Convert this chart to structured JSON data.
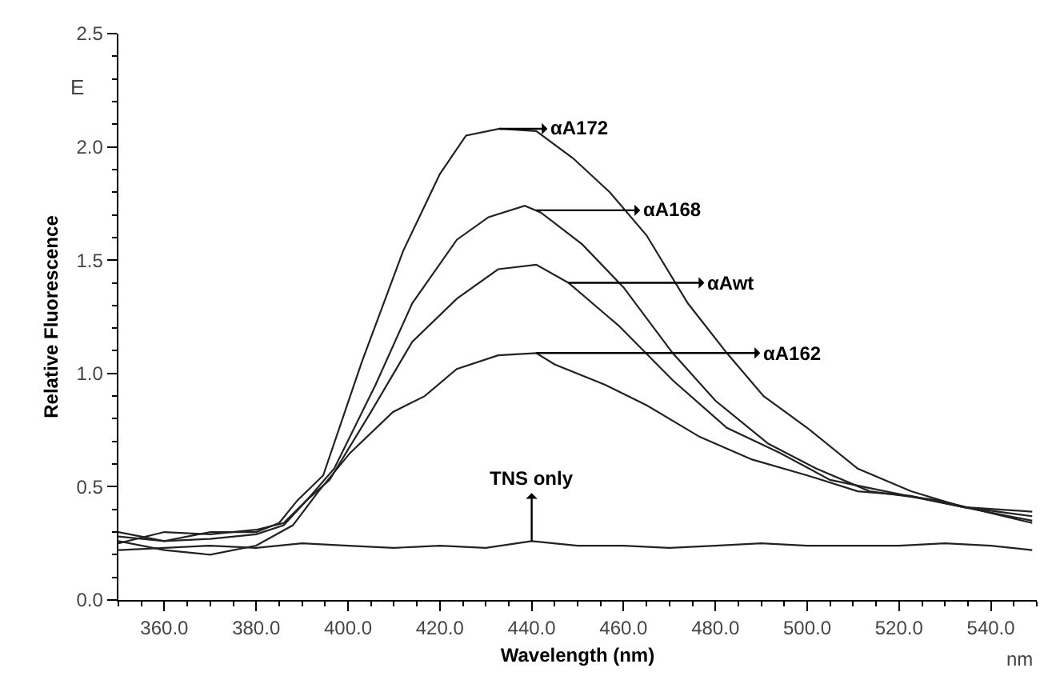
{
  "chart_data": {
    "type": "line",
    "xlabel": "Wavelength (nm)",
    "ylabel": "Relative Fluorescence",
    "xlim": [
      350,
      550
    ],
    "ylim": [
      0,
      2.5
    ],
    "xticks": [
      {
        "value": 360,
        "label": "360.0"
      },
      {
        "value": 380,
        "label": "380.0"
      },
      {
        "value": 400,
        "label": "400.0"
      },
      {
        "value": 420,
        "label": "420.0"
      },
      {
        "value": 440,
        "label": "440.0"
      },
      {
        "value": 460,
        "label": "460.0"
      },
      {
        "value": 480,
        "label": "480.0"
      },
      {
        "value": 500,
        "label": "500.0"
      },
      {
        "value": 520,
        "label": "520.0"
      },
      {
        "value": 540,
        "label": "540.0"
      }
    ],
    "yticks": [
      {
        "value": 0,
        "label": "0.0"
      },
      {
        "value": 0.5,
        "label": "0.5"
      },
      {
        "value": 1,
        "label": "1.0"
      },
      {
        "value": 1.5,
        "label": "1.5"
      },
      {
        "value": 2,
        "label": "2.0"
      },
      {
        "value": 2.5,
        "label": "2.5"
      }
    ],
    "grid": false,
    "marker": "none",
    "line_style": "solid",
    "annotations": [
      {
        "text": "αA172",
        "x": 433,
        "y": 2.08
      },
      {
        "text": "αA168",
        "x": 441,
        "y": 1.72
      },
      {
        "text": "αAwt",
        "x": 448,
        "y": 1.4
      },
      {
        "text": "αA162",
        "x": 441,
        "y": 1.09
      },
      {
        "text": "TNS only",
        "x": 440,
        "y": 0.26
      },
      "E",
      "nm"
    ],
    "series": [
      {
        "color": "#222222",
        "x": [
          350,
          360,
          370,
          380,
          385,
          389,
          394.6,
          403,
          412,
          420,
          425.7,
          433,
          441,
          449,
          457,
          465,
          474,
          482.5,
          490.5,
          500,
          511,
          522.6,
          534,
          549
        ],
        "values": [
          0.28,
          0.26,
          0.3,
          0.3,
          0.34,
          0.44,
          0.55,
          1.05,
          1.54,
          1.88,
          2.05,
          2.08,
          2.07,
          1.95,
          1.8,
          1.61,
          1.31,
          1.09,
          0.9,
          0.76,
          0.58,
          0.48,
          0.41,
          0.37
        ]
      },
      {
        "color": "#222222",
        "x": [
          350,
          360,
          370,
          380,
          386,
          391,
          397,
          406,
          414,
          423.7,
          430.6,
          438.5,
          442,
          451,
          460,
          470.7,
          480,
          491.5,
          502,
          513.6,
          528.5,
          549
        ],
        "values": [
          0.25,
          0.3,
          0.29,
          0.31,
          0.34,
          0.44,
          0.58,
          0.95,
          1.31,
          1.59,
          1.69,
          1.74,
          1.71,
          1.57,
          1.38,
          1.09,
          0.88,
          0.69,
          0.58,
          0.48,
          0.44,
          0.34
        ]
      },
      {
        "color": "#222222",
        "x": [
          350,
          360,
          370,
          380,
          386,
          391,
          396,
          405,
          414,
          423.7,
          432.7,
          441,
          448,
          459,
          470.7,
          482.5,
          494,
          505,
          517,
          534,
          549
        ],
        "values": [
          0.3,
          0.26,
          0.27,
          0.29,
          0.33,
          0.44,
          0.53,
          0.83,
          1.14,
          1.33,
          1.46,
          1.48,
          1.4,
          1.21,
          0.97,
          0.76,
          0.65,
          0.53,
          0.48,
          0.41,
          0.35
        ]
      },
      {
        "color": "#222222",
        "x": [
          350,
          360,
          370,
          380,
          388,
          393.6,
          400.5,
          409.8,
          416.7,
          423.7,
          432.7,
          441,
          445,
          456,
          465,
          476.6,
          488,
          500,
          511,
          522.6,
          534,
          549
        ],
        "values": [
          0.26,
          0.22,
          0.2,
          0.24,
          0.33,
          0.48,
          0.65,
          0.83,
          0.9,
          1.02,
          1.08,
          1.09,
          1.04,
          0.95,
          0.86,
          0.72,
          0.62,
          0.55,
          0.48,
          0.46,
          0.41,
          0.39
        ]
      },
      {
        "color": "#222222",
        "x": [
          350,
          360,
          370,
          380,
          390,
          400,
          410,
          420,
          430,
          440,
          450,
          460,
          470,
          480,
          490,
          500,
          510,
          520,
          530,
          540,
          549
        ],
        "values": [
          0.22,
          0.23,
          0.24,
          0.23,
          0.25,
          0.24,
          0.23,
          0.24,
          0.23,
          0.26,
          0.24,
          0.24,
          0.23,
          0.24,
          0.25,
          0.24,
          0.24,
          0.24,
          0.25,
          0.24,
          0.22
        ]
      }
    ]
  }
}
